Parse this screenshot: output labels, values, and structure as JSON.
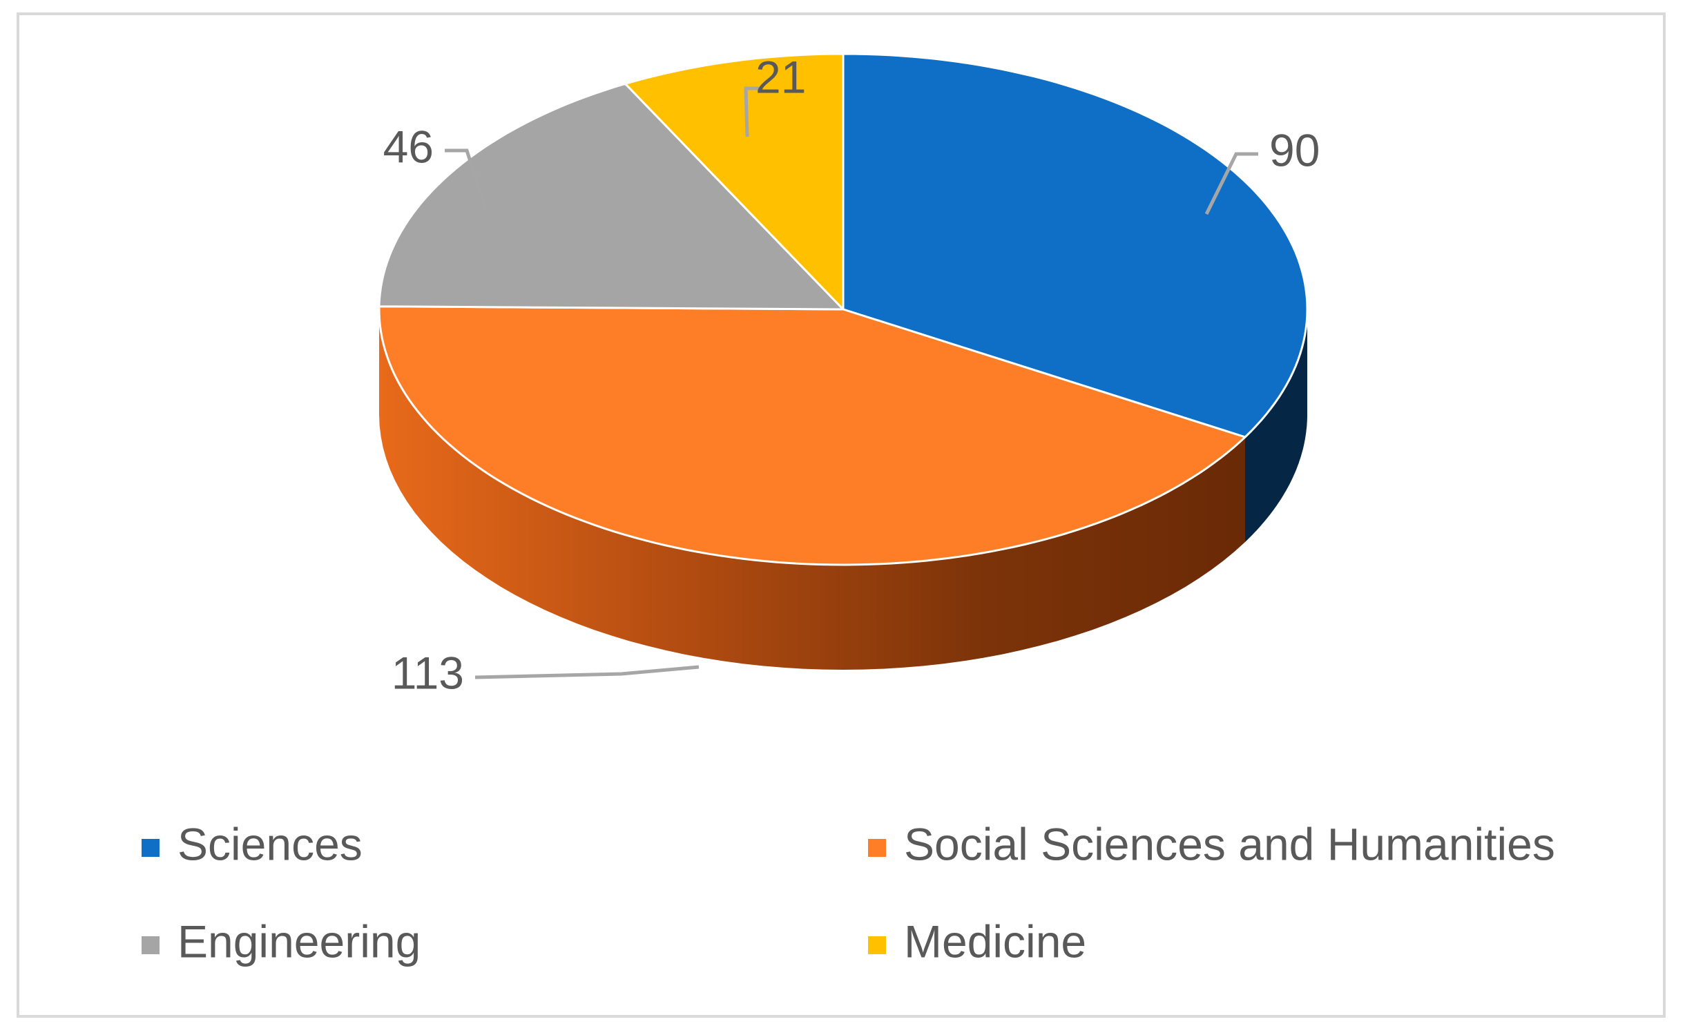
{
  "chart_data": {
    "type": "pie",
    "style": "3d",
    "title": "",
    "categories": [
      "Sciences",
      "Social Sciences and Humanities",
      "Engineering",
      "Medicine"
    ],
    "values": [
      90,
      113,
      46,
      21
    ],
    "colors": [
      "#0f6fc6",
      "#fe7e27",
      "#a5a5a5",
      "#ffc000"
    ],
    "data_labels": [
      "90",
      "113",
      "46",
      "21"
    ],
    "legend": {
      "position": "bottom",
      "entries": [
        {
          "label": "Sciences",
          "color": "#0f6fc6"
        },
        {
          "label": "Social Sciences and Humanities",
          "color": "#fe7e27"
        },
        {
          "label": "Engineering",
          "color": "#a5a5a5"
        },
        {
          "label": "Medicine",
          "color": "#ffc000"
        }
      ]
    }
  }
}
